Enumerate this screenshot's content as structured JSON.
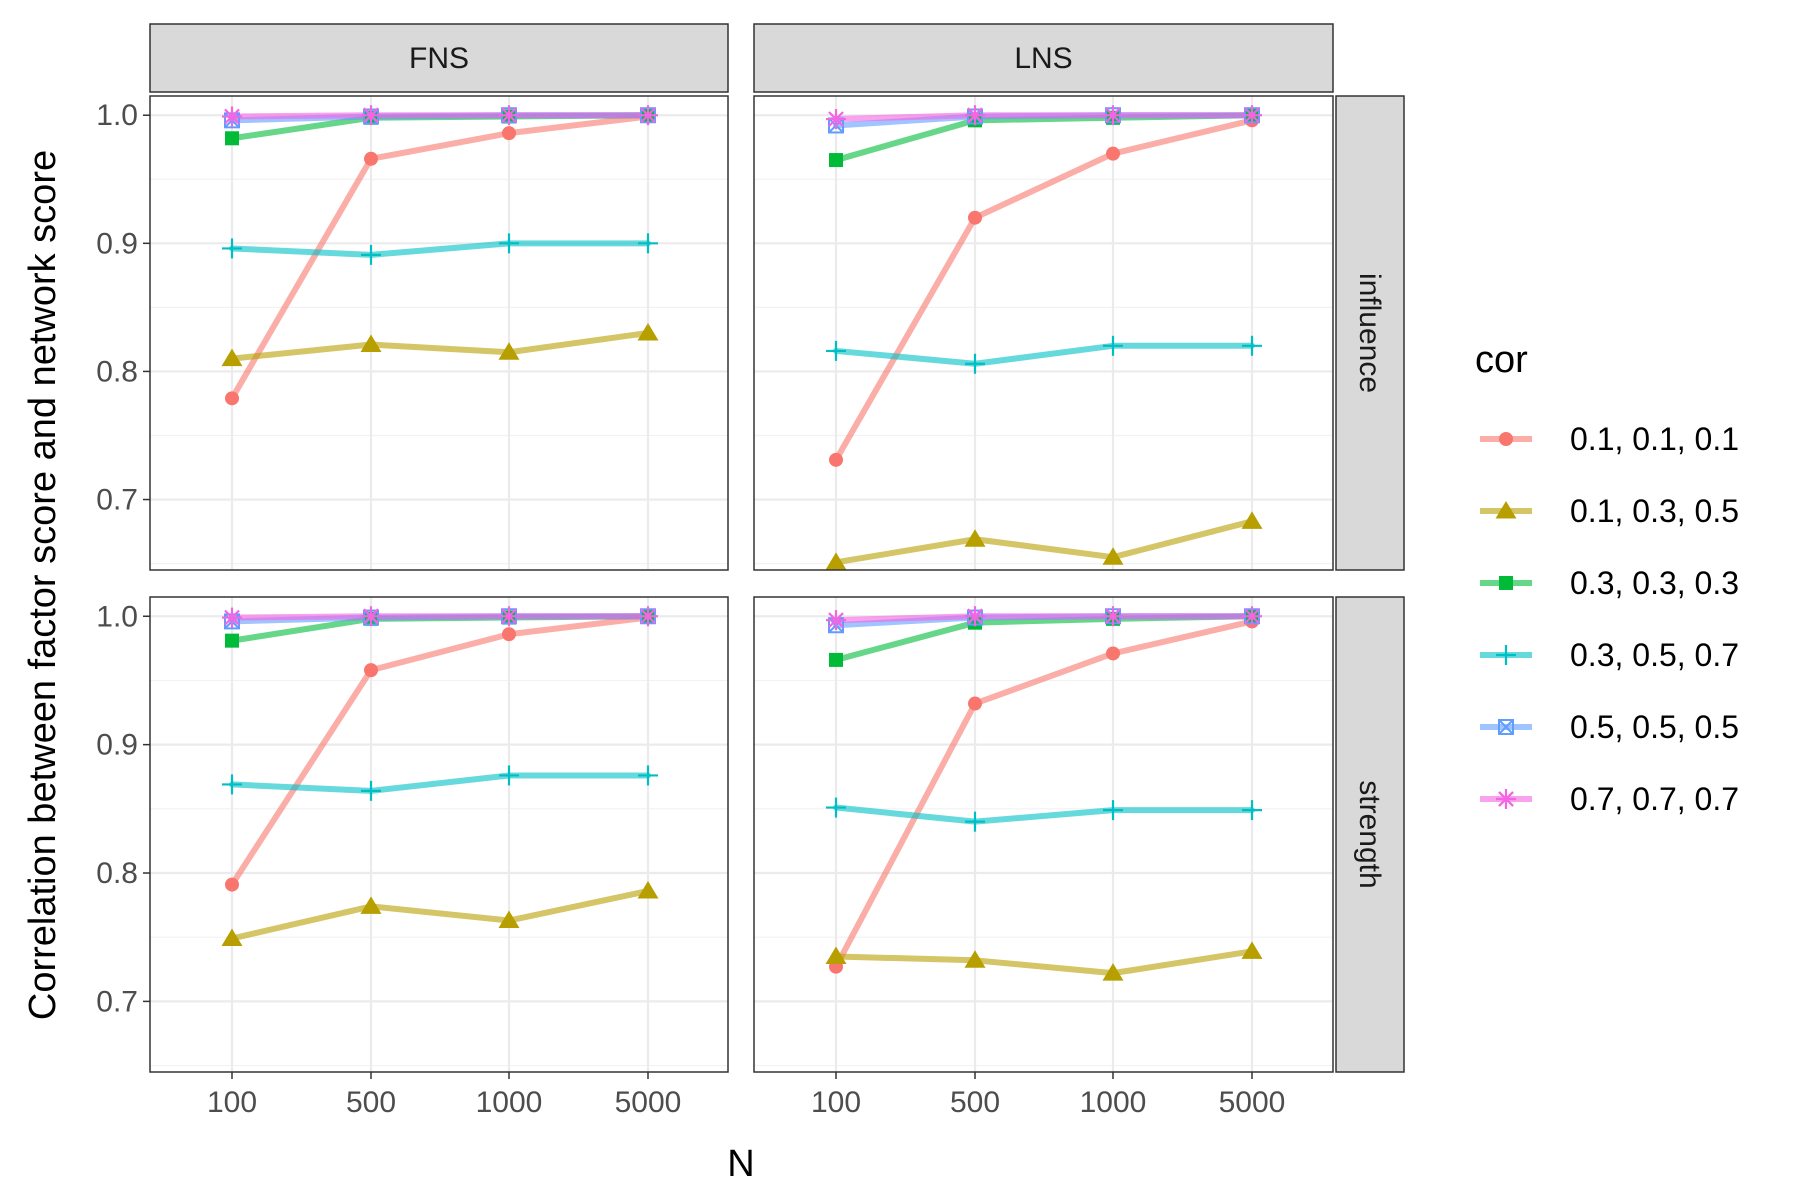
{
  "chart_data": {
    "type": "line",
    "title": "",
    "xlabel": "N",
    "ylabel": "Correlation between factor score and network score",
    "x_categories": [
      "100",
      "500",
      "1000",
      "5000"
    ],
    "ylim": [
      0.645,
      1.015
    ],
    "y_ticks": [
      0.7,
      0.8,
      0.9,
      1.0
    ],
    "y_tick_labels": [
      "0.7",
      "0.8",
      "0.9",
      "1.0"
    ],
    "grid": true,
    "columns": [
      "FNS",
      "LNS"
    ],
    "rows": [
      "influence",
      "strength"
    ],
    "legend": {
      "title": "cor",
      "position": "right"
    },
    "series_styles": [
      {
        "name": "0.1, 0.1, 0.1",
        "color": "#F8766D",
        "shape": "circle"
      },
      {
        "name": "0.1, 0.3, 0.5",
        "color": "#B79F00",
        "shape": "triangle"
      },
      {
        "name": "0.3, 0.3, 0.3",
        "color": "#00BA38",
        "shape": "square"
      },
      {
        "name": "0.3, 0.5, 0.7",
        "color": "#00BFC4",
        "shape": "plus"
      },
      {
        "name": "0.5, 0.5, 0.5",
        "color": "#619CFF",
        "shape": "boxcross"
      },
      {
        "name": "0.7, 0.7, 0.7",
        "color": "#F564E3",
        "shape": "asterisk"
      }
    ],
    "panels": [
      {
        "column": "FNS",
        "row": "influence",
        "series": [
          {
            "name": "0.1, 0.1, 0.1",
            "values": [
              0.779,
              0.966,
              0.986,
              0.999
            ]
          },
          {
            "name": "0.1, 0.3, 0.5",
            "values": [
              0.81,
              0.821,
              0.815,
              0.83
            ]
          },
          {
            "name": "0.3, 0.3, 0.3",
            "values": [
              0.982,
              0.998,
              0.999,
              1.0
            ]
          },
          {
            "name": "0.3, 0.5, 0.7",
            "values": [
              0.896,
              0.891,
              0.9,
              0.9
            ]
          },
          {
            "name": "0.5, 0.5, 0.5",
            "values": [
              0.996,
              0.999,
              1.0,
              1.0
            ]
          },
          {
            "name": "0.7, 0.7, 0.7",
            "values": [
              0.999,
              1.0,
              1.0,
              1.0
            ]
          }
        ]
      },
      {
        "column": "LNS",
        "row": "influence",
        "series": [
          {
            "name": "0.1, 0.1, 0.1",
            "values": [
              0.731,
              0.92,
              0.97,
              0.996
            ]
          },
          {
            "name": "0.1, 0.3, 0.5",
            "values": [
              0.651,
              0.669,
              0.655,
              0.683
            ]
          },
          {
            "name": "0.3, 0.3, 0.3",
            "values": [
              0.965,
              0.996,
              0.998,
              1.0
            ]
          },
          {
            "name": "0.3, 0.5, 0.7",
            "values": [
              0.816,
              0.806,
              0.82,
              0.82
            ]
          },
          {
            "name": "0.5, 0.5, 0.5",
            "values": [
              0.992,
              0.999,
              1.0,
              1.0
            ]
          },
          {
            "name": "0.7, 0.7, 0.7",
            "values": [
              0.997,
              1.0,
              1.0,
              1.0
            ]
          }
        ]
      },
      {
        "column": "FNS",
        "row": "strength",
        "series": [
          {
            "name": "0.1, 0.1, 0.1",
            "values": [
              0.791,
              0.958,
              0.986,
              0.999
            ]
          },
          {
            "name": "0.1, 0.3, 0.5",
            "values": [
              0.749,
              0.774,
              0.763,
              0.786
            ]
          },
          {
            "name": "0.3, 0.3, 0.3",
            "values": [
              0.981,
              0.998,
              0.999,
              1.0
            ]
          },
          {
            "name": "0.3, 0.5, 0.7",
            "values": [
              0.869,
              0.864,
              0.876,
              0.876
            ]
          },
          {
            "name": "0.5, 0.5, 0.5",
            "values": [
              0.996,
              0.999,
              1.0,
              1.0
            ]
          },
          {
            "name": "0.7, 0.7, 0.7",
            "values": [
              0.999,
              1.0,
              1.0,
              1.0
            ]
          }
        ]
      },
      {
        "column": "LNS",
        "row": "strength",
        "series": [
          {
            "name": "0.1, 0.1, 0.1",
            "values": [
              0.727,
              0.932,
              0.971,
              0.996
            ]
          },
          {
            "name": "0.1, 0.3, 0.5",
            "values": [
              0.735,
              0.732,
              0.722,
              0.739
            ]
          },
          {
            "name": "0.3, 0.3, 0.3",
            "values": [
              0.966,
              0.995,
              0.998,
              1.0
            ]
          },
          {
            "name": "0.3, 0.5, 0.7",
            "values": [
              0.851,
              0.84,
              0.849,
              0.849
            ]
          },
          {
            "name": "0.5, 0.5, 0.5",
            "values": [
              0.993,
              0.999,
              1.0,
              1.0
            ]
          },
          {
            "name": "0.7, 0.7, 0.7",
            "values": [
              0.997,
              1.0,
              1.0,
              1.0
            ]
          }
        ]
      }
    ]
  }
}
